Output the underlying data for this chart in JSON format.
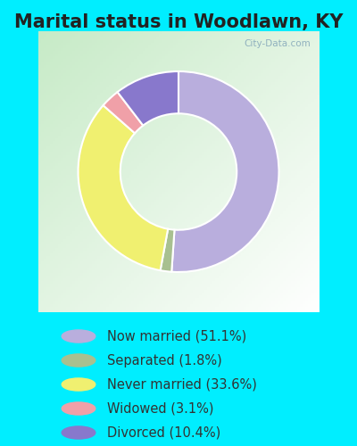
{
  "title": "Marital status in Woodlawn, KY",
  "title_fontsize": 15,
  "title_color": "#222222",
  "slices": [
    {
      "label": "Now married (51.1%)",
      "value": 51.1,
      "color": "#b9aedd"
    },
    {
      "label": "Separated (1.8%)",
      "value": 1.8,
      "color": "#a8c090"
    },
    {
      "label": "Never married (33.6%)",
      "value": 33.6,
      "color": "#f0f070"
    },
    {
      "label": "Widowed (3.1%)",
      "value": 3.1,
      "color": "#f0a0a8"
    },
    {
      "label": "Divorced (10.4%)",
      "value": 10.4,
      "color": "#8878cc"
    }
  ],
  "legend_colors": [
    "#b9aedd",
    "#a8c090",
    "#f0f070",
    "#f0a0a8",
    "#8878cc"
  ],
  "legend_labels": [
    "Now married (51.1%)",
    "Separated (1.8%)",
    "Never married (33.6%)",
    "Widowed (3.1%)",
    "Divorced (10.4%)"
  ],
  "figsize": [
    4.0,
    5.0
  ],
  "dpi": 100,
  "cyan_bg": "#00EEFF",
  "chart_bg_color": "#d8eed8",
  "watermark_text": "City-Data.com",
  "watermark_color": "#88aabb",
  "startangle": 90
}
